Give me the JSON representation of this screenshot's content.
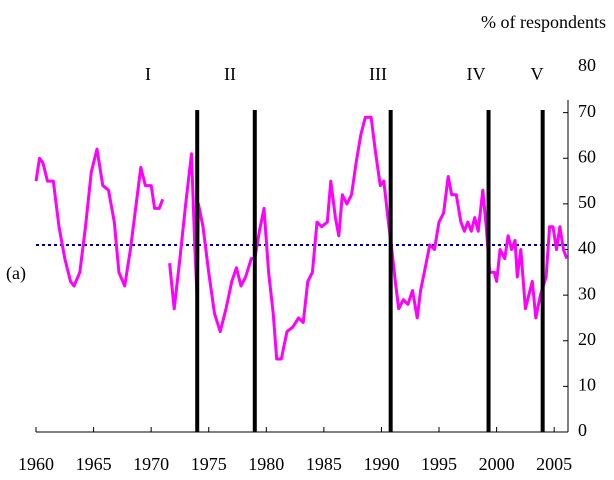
{
  "chart_data": {
    "type": "line",
    "y_axis_title": "% of respondents",
    "annotation": "(a)",
    "period_labels": [
      "I",
      "II",
      "III",
      "IV",
      "V"
    ],
    "vertical_lines": [
      1974,
      1979,
      1990.8,
      1999.3,
      2004
    ],
    "vertical_line_color": "#000000",
    "reference_line": 41,
    "reference_line_color": "#000080",
    "x": [
      1960,
      1960.3,
      1960.6,
      1961,
      1961.5,
      1962,
      1962.5,
      1963,
      1963.3,
      1963.8,
      1964.3,
      1964.8,
      1965.3,
      1965.8,
      1966.3,
      1966.8,
      1967.2,
      1967.7,
      1968.2,
      1968.7,
      1969.1,
      1969.5,
      1970,
      1970.3,
      1970.7,
      1971,
      1971.3,
      1971.6,
      1972,
      1972.5,
      1973,
      1973.5,
      1973.8,
      1974,
      1974.1,
      1974.5,
      1975,
      1975.5,
      1976,
      1976.5,
      1977,
      1977.4,
      1977.8,
      1978.2,
      1978.7,
      1979,
      1979.4,
      1979.8,
      1980.2,
      1980.6,
      1980.9,
      1981.3,
      1981.8,
      1982.3,
      1982.8,
      1983.2,
      1983.6,
      1984,
      1984.4,
      1984.8,
      1985.3,
      1985.6,
      1986,
      1986.3,
      1986.6,
      1987,
      1987.4,
      1987.8,
      1988.2,
      1988.6,
      1989.1,
      1989.5,
      1989.9,
      1990.2,
      1990.6,
      1990.9,
      1991.2,
      1991.5,
      1991.9,
      1992.3,
      1992.7,
      1993.1,
      1993.4,
      1993.8,
      1994.2,
      1994.6,
      1995,
      1995.4,
      1995.8,
      1996.1,
      1996.5,
      1996.9,
      1997.2,
      1997.5,
      1997.8,
      1998.1,
      1998.4,
      1998.8,
      1999.1,
      1999.4,
      1999.8,
      2000,
      2000.3,
      2000.7,
      2001,
      2001.3,
      2001.6,
      2001.8,
      2002.1,
      2002.5,
      2002.8,
      2003.1,
      2003.4,
      2003.8,
      2004.3,
      2004.6,
      2004.9,
      2005.2,
      2005.5,
      2005.8,
      2006.1
    ],
    "series": [
      {
        "color": "#ff00ff",
        "values": [
          55,
          60,
          59,
          55,
          55,
          45,
          38,
          33,
          32,
          35,
          45,
          57,
          62,
          54,
          53,
          46,
          35,
          32,
          40,
          50,
          58,
          54,
          54,
          49,
          49,
          51,
          null,
          37,
          27,
          38,
          50,
          61,
          40,
          29,
          50,
          45,
          35,
          26,
          22,
          27,
          33,
          36,
          32,
          34,
          38,
          38,
          44,
          49,
          35,
          26,
          16,
          16,
          22,
          23,
          25,
          24,
          33,
          35,
          46,
          45,
          46,
          55,
          47,
          43,
          52,
          50,
          52,
          59,
          65,
          69,
          69,
          61,
          54,
          55,
          46,
          40,
          33,
          27,
          29,
          28,
          31,
          25,
          31,
          36,
          41,
          40,
          46,
          48,
          56,
          52,
          52,
          46,
          44,
          46,
          44,
          47,
          44,
          53,
          45,
          35,
          35,
          33,
          40,
          38,
          43,
          40,
          42,
          34,
          40,
          27,
          30,
          33,
          25,
          30,
          34,
          45,
          45,
          40,
          45,
          40,
          38
        ]
      }
    ],
    "xlim": [
      1960,
      2006.2
    ],
    "xticks": [
      1960,
      1965,
      1970,
      1975,
      1980,
      1985,
      1990,
      1995,
      2000,
      2005
    ],
    "ylim": [
      0,
      80
    ],
    "yticks": [
      0,
      10,
      20,
      30,
      40,
      50,
      60,
      70,
      80
    ]
  }
}
